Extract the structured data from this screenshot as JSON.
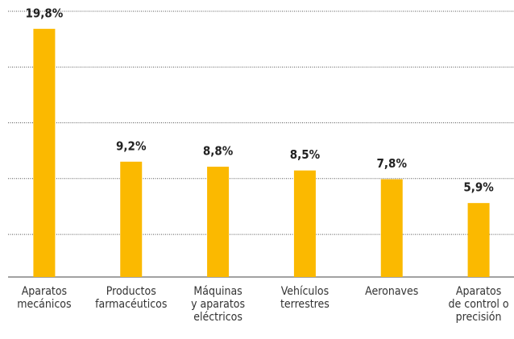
{
  "chart_data": {
    "type": "bar",
    "categories": [
      "Aparatos\nmecánicos",
      "Productos\nfarmacéuticos",
      "Máquinas\ny aparatos\neléctricos",
      "Vehículos\nterrestres",
      "Aeronaves",
      "Aparatos\nde control o\nprecisión"
    ],
    "values": [
      19.8,
      9.2,
      8.8,
      8.5,
      7.8,
      5.9
    ],
    "value_labels": [
      "19,8%",
      "9,2%",
      "8,8%",
      "8,5%",
      "7,8%",
      "5,9%"
    ],
    "color": "#fbb900",
    "ylim": [
      0,
      21.2
    ],
    "yticks": [
      3.4,
      7.85,
      12.3,
      16.75,
      21.2
    ],
    "grid": true,
    "ytick_labels": false
  }
}
